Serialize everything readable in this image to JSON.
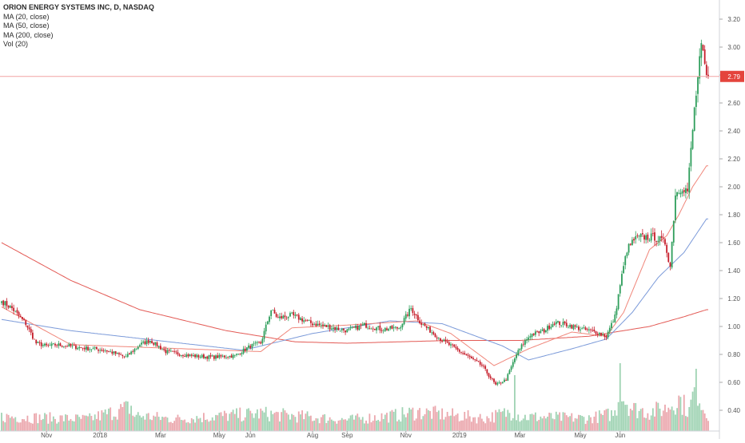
{
  "title": "ORION ENERGY SYSTEMS INC, D, NASDAQ",
  "legend": [
    "MA (20, close)",
    "MA (50, close)",
    "MA (200, close)",
    "Vol (20)"
  ],
  "colors": {
    "up": "#2e9e5b",
    "down": "#c61d2a",
    "vol_up": "#9fd3b3",
    "vol_down": "#eba7ad",
    "ma20": "#f0877b",
    "ma50": "#7b9ad9",
    "ma200": "#e35a55",
    "price_line": "#f2a3a3",
    "price_label_bg": "#e4443c",
    "axis_text": "#555555"
  },
  "chart_data": {
    "type": "candlestick",
    "y_ticks": [
      "3.20",
      "3.00",
      "2.80",
      "2.60",
      "2.40",
      "2.20",
      "2.00",
      "1.80",
      "1.60",
      "1.40",
      "1.20",
      "1.00",
      "0.80",
      "0.60",
      "0.40"
    ],
    "x_ticks": [
      "Nov",
      "2018",
      "Mar",
      "May",
      "Jun",
      "Aug",
      "Sep",
      "Nov",
      "2019",
      "Mar",
      "May",
      "Jun"
    ],
    "last_price": "2.79",
    "ylim": [
      0.3,
      3.3
    ],
    "anchors": {
      "close": [
        [
          0,
          1.18
        ],
        [
          6,
          1.13
        ],
        [
          14,
          1.02
        ],
        [
          20,
          0.88
        ],
        [
          26,
          0.86
        ],
        [
          32,
          0.87
        ],
        [
          45,
          0.85
        ],
        [
          60,
          0.83
        ],
        [
          72,
          0.78
        ],
        [
          80,
          0.87
        ],
        [
          86,
          0.9
        ],
        [
          95,
          0.82
        ],
        [
          110,
          0.79
        ],
        [
          122,
          0.78
        ],
        [
          135,
          0.79
        ],
        [
          144,
          0.86
        ],
        [
          150,
          0.88
        ],
        [
          156,
          1.12
        ],
        [
          160,
          1.06
        ],
        [
          168,
          1.08
        ],
        [
          180,
          1.02
        ],
        [
          200,
          0.97
        ],
        [
          210,
          1.01
        ],
        [
          220,
          0.98
        ],
        [
          230,
          0.99
        ],
        [
          237,
          1.13
        ],
        [
          243,
          1.02
        ],
        [
          255,
          0.9
        ],
        [
          268,
          0.8
        ],
        [
          278,
          0.72
        ],
        [
          286,
          0.58
        ],
        [
          292,
          0.62
        ],
        [
          298,
          0.8
        ],
        [
          302,
          0.88
        ],
        [
          306,
          0.94
        ],
        [
          314,
          0.97
        ],
        [
          320,
          1.03
        ],
        [
          328,
          1.01
        ],
        [
          336,
          0.98
        ],
        [
          344,
          0.96
        ],
        [
          350,
          0.93
        ],
        [
          355,
          1.07
        ],
        [
          358,
          1.3
        ],
        [
          362,
          1.55
        ],
        [
          366,
          1.62
        ],
        [
          370,
          1.64
        ],
        [
          378,
          1.64
        ],
        [
          384,
          1.6
        ],
        [
          387,
          1.43
        ],
        [
          390,
          1.95
        ],
        [
          394,
          2.0
        ],
        [
          397,
          1.97
        ],
        [
          401,
          2.55
        ],
        [
          405,
          3.0
        ],
        [
          408,
          2.79
        ]
      ],
      "volume": [
        [
          0,
          18
        ],
        [
          50,
          15
        ],
        [
          75,
          30
        ],
        [
          76,
          20
        ],
        [
          100,
          15
        ],
        [
          150,
          22
        ],
        [
          200,
          14
        ],
        [
          230,
          20
        ],
        [
          240,
          24
        ],
        [
          280,
          16
        ],
        [
          297,
          25
        ],
        [
          300,
          18
        ],
        [
          340,
          16
        ],
        [
          355,
          22
        ],
        [
          358,
          48
        ],
        [
          365,
          28
        ],
        [
          375,
          24
        ],
        [
          384,
          28
        ],
        [
          392,
          40
        ],
        [
          398,
          25
        ],
        [
          402,
          60
        ],
        [
          404,
          45
        ],
        [
          406,
          30
        ],
        [
          408,
          22
        ]
      ],
      "ma20": [
        [
          0,
          1.14
        ],
        [
          40,
          0.87
        ],
        [
          150,
          0.82
        ],
        [
          168,
          0.99
        ],
        [
          200,
          1.01
        ],
        [
          240,
          1.04
        ],
        [
          260,
          0.95
        ],
        [
          285,
          0.72
        ],
        [
          305,
          0.84
        ],
        [
          330,
          0.96
        ],
        [
          350,
          0.93
        ],
        [
          360,
          1.1
        ],
        [
          375,
          1.55
        ],
        [
          385,
          1.65
        ],
        [
          392,
          1.8
        ],
        [
          400,
          2.0
        ],
        [
          408,
          2.15
        ]
      ],
      "ma50": [
        [
          0,
          1.05
        ],
        [
          40,
          0.97
        ],
        [
          140,
          0.83
        ],
        [
          180,
          0.95
        ],
        [
          225,
          1.04
        ],
        [
          255,
          1.02
        ],
        [
          290,
          0.86
        ],
        [
          305,
          0.76
        ],
        [
          330,
          0.84
        ],
        [
          350,
          0.91
        ],
        [
          365,
          1.1
        ],
        [
          380,
          1.35
        ],
        [
          395,
          1.53
        ],
        [
          408,
          1.77
        ]
      ],
      "ma200": [
        [
          0,
          1.6
        ],
        [
          40,
          1.33
        ],
        [
          80,
          1.12
        ],
        [
          130,
          0.97
        ],
        [
          170,
          0.89
        ],
        [
          200,
          0.88
        ],
        [
          260,
          0.9
        ],
        [
          300,
          0.9
        ],
        [
          340,
          0.93
        ],
        [
          375,
          1.0
        ],
        [
          395,
          1.07
        ],
        [
          408,
          1.12
        ]
      ]
    }
  }
}
